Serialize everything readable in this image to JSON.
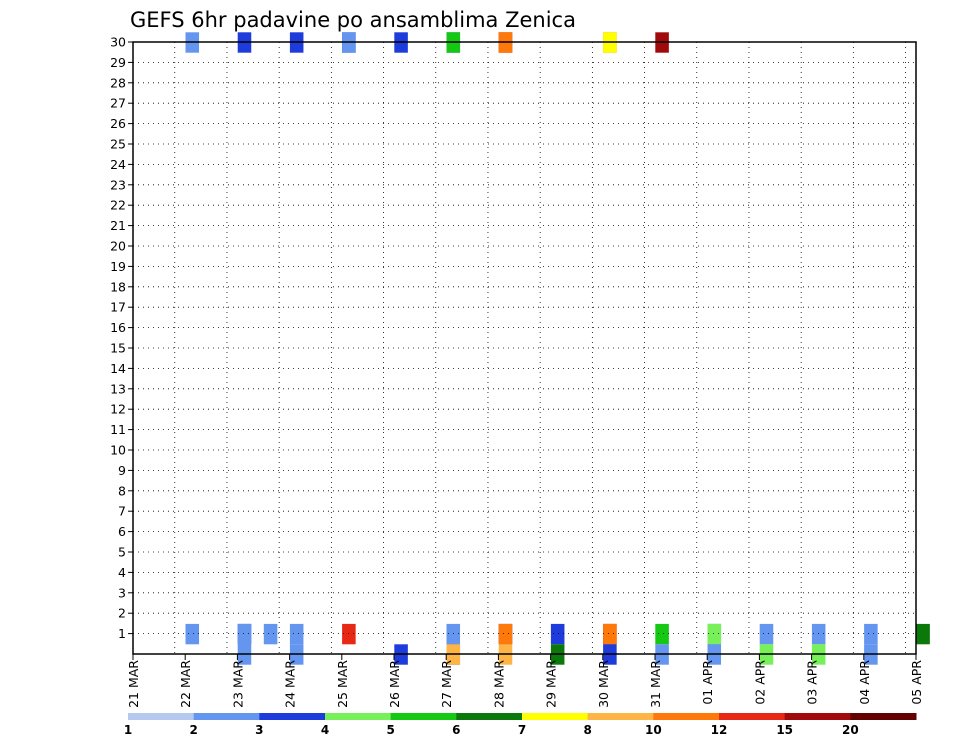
{
  "chart_data": {
    "type": "heatmap",
    "title": "GEFS 6hr padavine po ansamblima Zenica",
    "xlabel": "",
    "ylabel": "",
    "y_ticks": [
      "1",
      "2",
      "3",
      "4",
      "5",
      "6",
      "7",
      "8",
      "9",
      "10",
      "11",
      "12",
      "13",
      "14",
      "15",
      "16",
      "17",
      "18",
      "19",
      "20",
      "21",
      "22",
      "23",
      "24",
      "25",
      "26",
      "27",
      "28",
      "29",
      "30"
    ],
    "x_tick_labels": [
      "21 MAR",
      "22 MAR",
      "23 MAR",
      "24 MAR",
      "25 MAR",
      "26 MAR",
      "27 MAR",
      "28 MAR",
      "29 MAR",
      "30 MAR",
      "31 MAR",
      "01 APR",
      "02 APR",
      "03 APR",
      "04 APR",
      "05 APR"
    ],
    "x_range_steps": [
      0,
      60
    ],
    "step_hours": 6,
    "y_range": [
      0,
      30
    ],
    "grid": true,
    "legend_placement": "bottom",
    "legend": {
      "labels": [
        "1",
        "2",
        "3",
        "4",
        "5",
        "6",
        "7",
        "8",
        "10",
        "12",
        "15",
        "20"
      ],
      "colors": [
        "#b4c8f0",
        "#6496f0",
        "#1e3cdc",
        "#78f05a",
        "#14c814",
        "#0a780a",
        "#ffff00",
        "#ffb446",
        "#ff780a",
        "#e62814",
        "#a00a0a",
        "#640000"
      ]
    },
    "cells": [
      [
        4,
        30,
        1
      ],
      [
        8,
        30,
        2
      ],
      [
        12,
        30,
        2
      ],
      [
        16,
        30,
        2
      ],
      [
        16,
        30,
        1
      ],
      [
        20,
        30,
        2
      ],
      [
        24,
        30,
        2
      ],
      [
        24,
        30,
        4
      ],
      [
        28,
        30,
        10
      ],
      [
        28,
        30,
        8
      ],
      [
        36,
        30,
        8
      ],
      [
        36,
        30,
        6
      ],
      [
        40,
        30,
        10
      ],
      [
        4,
        1,
        1
      ],
      [
        8,
        1,
        2
      ],
      [
        8,
        1,
        1
      ],
      [
        10,
        1,
        1
      ],
      [
        12,
        1,
        1
      ],
      [
        16,
        1,
        9
      ],
      [
        24,
        1,
        1
      ],
      [
        28,
        1,
        2
      ],
      [
        28,
        1,
        8
      ],
      [
        32,
        1,
        2
      ],
      [
        36,
        1,
        10
      ],
      [
        36,
        1,
        8
      ],
      [
        40,
        1,
        4
      ],
      [
        44,
        1,
        2
      ],
      [
        44,
        1,
        3
      ],
      [
        48,
        1,
        1
      ],
      [
        52,
        1,
        1
      ],
      [
        56,
        1,
        1
      ],
      [
        60,
        1,
        5
      ],
      [
        8,
        0,
        1
      ],
      [
        12,
        0,
        1
      ],
      [
        20,
        0,
        2
      ],
      [
        24,
        0,
        2
      ],
      [
        24,
        0,
        7
      ],
      [
        28,
        0,
        7
      ],
      [
        32,
        0,
        5
      ],
      [
        36,
        0,
        2
      ],
      [
        40,
        0,
        1
      ],
      [
        44,
        0,
        1
      ],
      [
        48,
        0,
        3
      ],
      [
        52,
        0,
        3
      ],
      [
        56,
        0,
        1
      ]
    ],
    "series": []
  }
}
